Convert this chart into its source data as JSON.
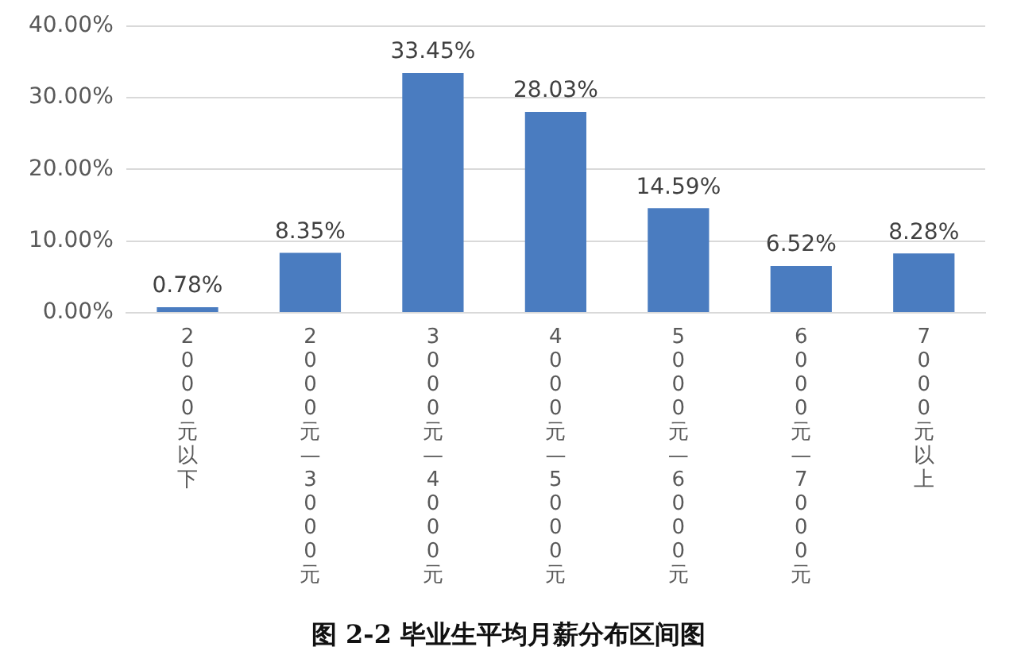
{
  "chart_data": {
    "type": "bar",
    "categories": [
      "2000元以下",
      "2000元—3000元",
      "3000元—4000元",
      "4000元—5000元",
      "5000元—6000元",
      "6000元—7000元",
      "7000元以上"
    ],
    "values": [
      0.78,
      8.35,
      33.45,
      28.03,
      14.59,
      6.52,
      8.28
    ],
    "value_labels": [
      "0.78%",
      "8.35%",
      "33.45%",
      "28.03%",
      "14.59%",
      "6.52%",
      "8.28%"
    ],
    "color": "#4a7cc0",
    "ylim": [
      0,
      40
    ],
    "yticks": [
      {
        "value": 0,
        "label": "0.00%"
      },
      {
        "value": 10,
        "label": "10.00%"
      },
      {
        "value": 20,
        "label": "20.00%"
      },
      {
        "value": 30,
        "label": "30.00%"
      },
      {
        "value": 40,
        "label": "40.00%"
      }
    ],
    "grid": "y",
    "annotations": [
      "图 2-2  毕业生平均月薪分布区间图"
    ]
  }
}
